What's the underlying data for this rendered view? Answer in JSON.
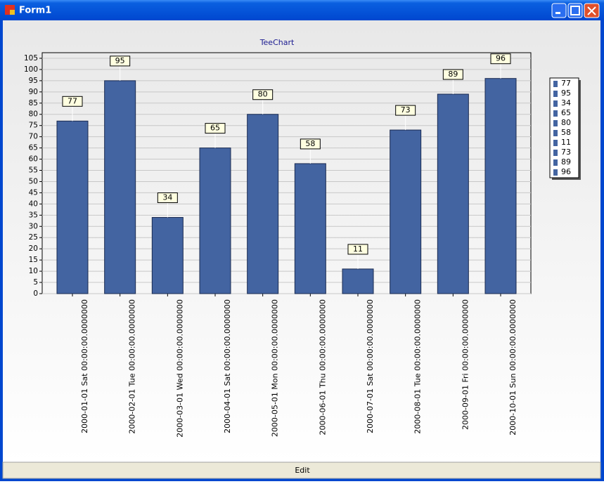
{
  "window_title": "Form1",
  "button": "Edit",
  "chart_data": {
    "type": "bar",
    "title": "TeeChart",
    "categories": [
      "2000-01-01 Sat 00:00:00.0000000",
      "2000-02-01 Tue 00:00:00.0000000",
      "2000-03-01 Wed 00:00:00.0000000",
      "2000-04-01 Sat 00:00:00.0000000",
      "2000-05-01 Mon 00:00:00.0000000",
      "2000-06-01 Thu 00:00:00.0000000",
      "2000-07-01 Sat 00:00:00.0000000",
      "2000-08-01 Tue 00:00:00.0000000",
      "2000-09-01 Fri 00:00:00.0000000",
      "2000-10-01 Sun 00:00:00.0000000"
    ],
    "values": [
      77,
      95,
      34,
      65,
      80,
      58,
      11,
      73,
      89,
      96
    ],
    "color": "#4364a1",
    "ylim": [
      0,
      107.5
    ],
    "yticks": [
      0,
      5,
      10,
      15,
      20,
      25,
      30,
      35,
      40,
      45,
      50,
      55,
      60,
      65,
      70,
      75,
      80,
      85,
      90,
      95,
      100,
      105
    ],
    "grid": true,
    "legend": "right"
  }
}
